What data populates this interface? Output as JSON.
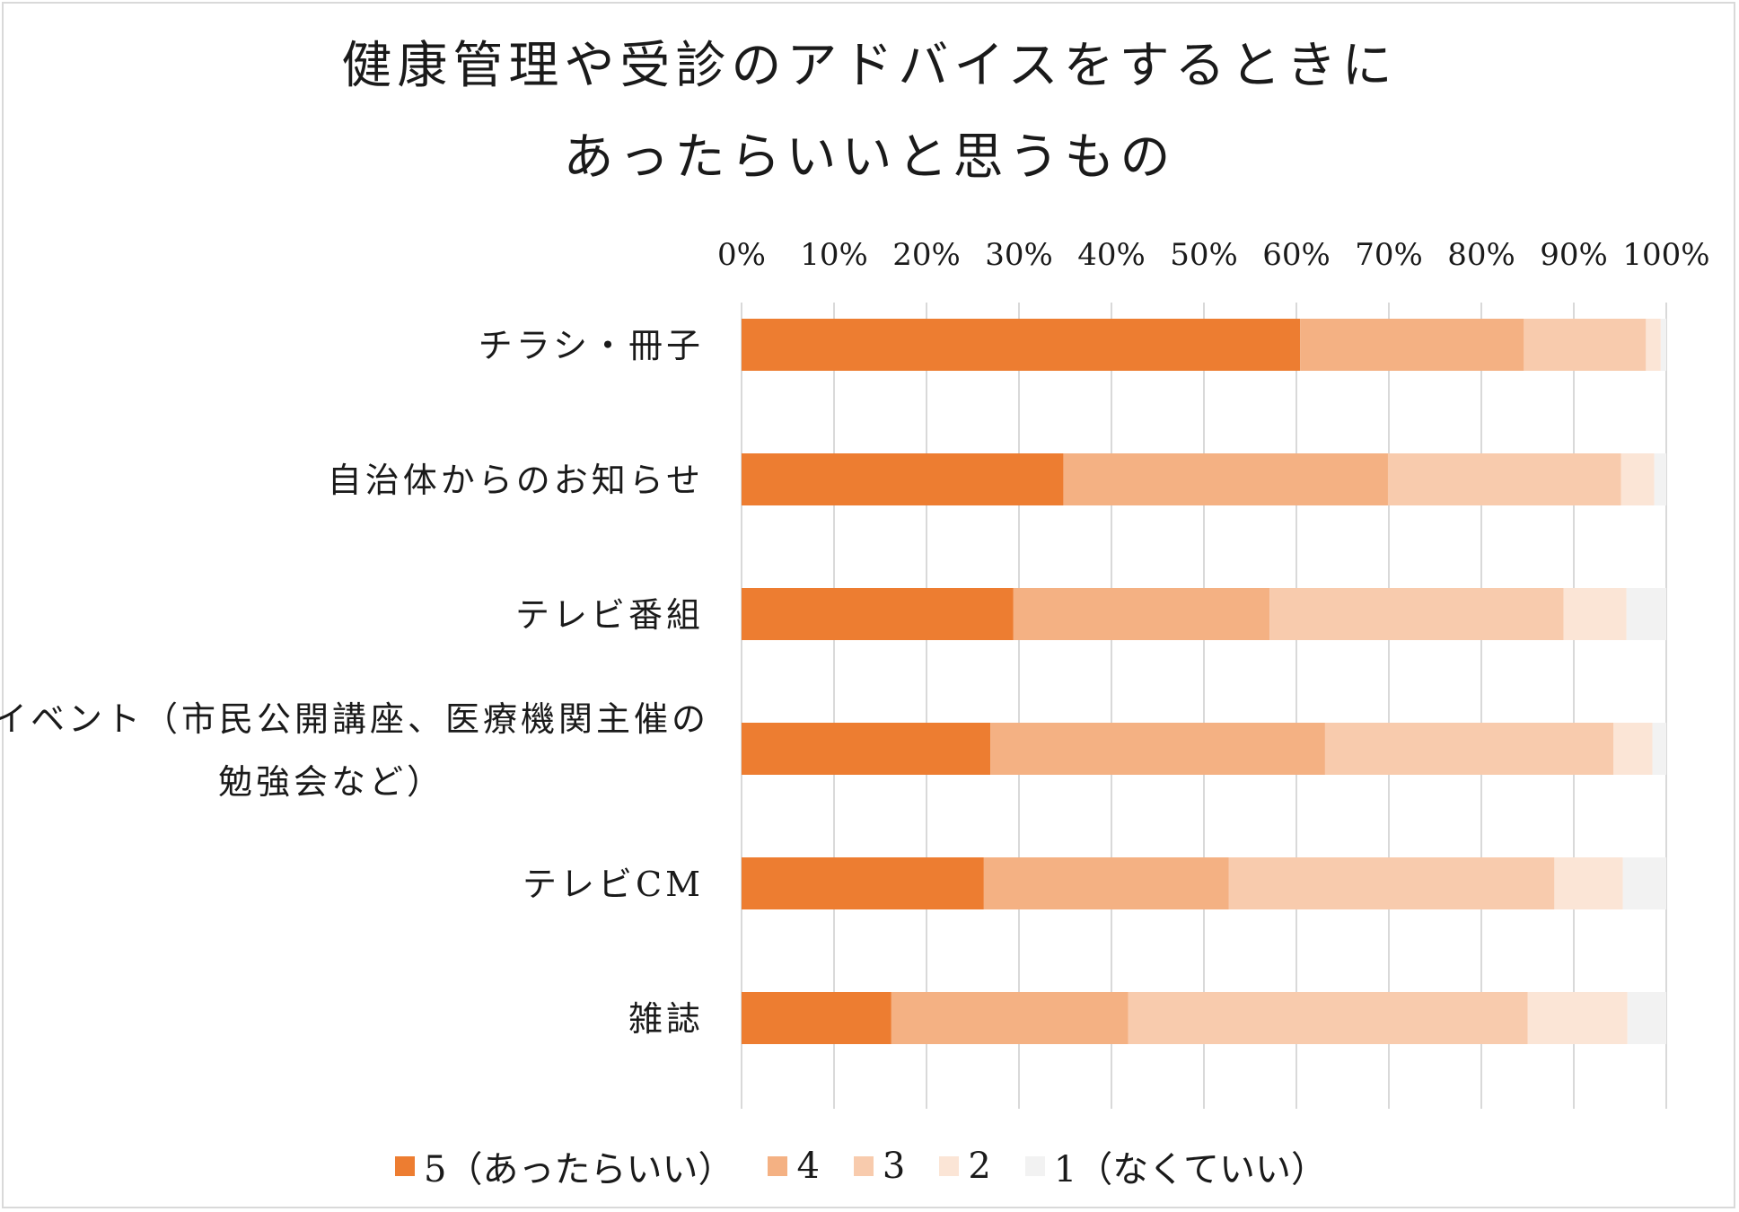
{
  "chart_data": {
    "type": "bar",
    "orientation": "horizontal",
    "stacked": "percent",
    "title_lines": [
      "健康管理や受診のアドバイスをするときに",
      "あったらいいと思うもの"
    ],
    "categories": [
      "チラシ・冊子",
      "自治体からのお知らせ",
      "テレビ番組",
      "イベント（市民公開講座、医療機関主催の勉強会など）",
      "テレビCM",
      "雑誌"
    ],
    "category_label_lines": [
      [
        "チラシ・冊子"
      ],
      [
        "自治体からのお知らせ"
      ],
      [
        "テレビ番組"
      ],
      [
        "イベント（市民公開講座、医療機関主催の",
        "勉強会など）"
      ],
      [
        "テレビCM"
      ],
      [
        "雑誌"
      ]
    ],
    "x_tick_labels": [
      "0%",
      "10%",
      "20%",
      "30%",
      "40%",
      "50%",
      "60%",
      "70%",
      "80%",
      "90%",
      "100%"
    ],
    "xlim": [
      0,
      100
    ],
    "x_axis_position": "top",
    "grid": true,
    "legend_position": "bottom",
    "series": [
      {
        "name": "5（あったらいい）",
        "color": "#ED7D31",
        "values": [
          60.4,
          34.8,
          29.4,
          26.9,
          26.2,
          16.2
        ]
      },
      {
        "name": "4",
        "color": "#F4B183",
        "values": [
          24.2,
          35.1,
          27.7,
          36.2,
          26.5,
          25.6
        ]
      },
      {
        "name": "3",
        "color": "#F8CBAD",
        "values": [
          13.2,
          25.2,
          31.8,
          31.2,
          35.2,
          43.2
        ]
      },
      {
        "name": "2",
        "color": "#FBE5D6",
        "values": [
          1.6,
          3.6,
          6.8,
          4.2,
          7.4,
          10.8
        ]
      },
      {
        "name": "1（なくていい）",
        "color": "#F2F2F2",
        "values": [
          0.6,
          1.3,
          4.3,
          1.5,
          4.7,
          4.2
        ]
      }
    ]
  }
}
